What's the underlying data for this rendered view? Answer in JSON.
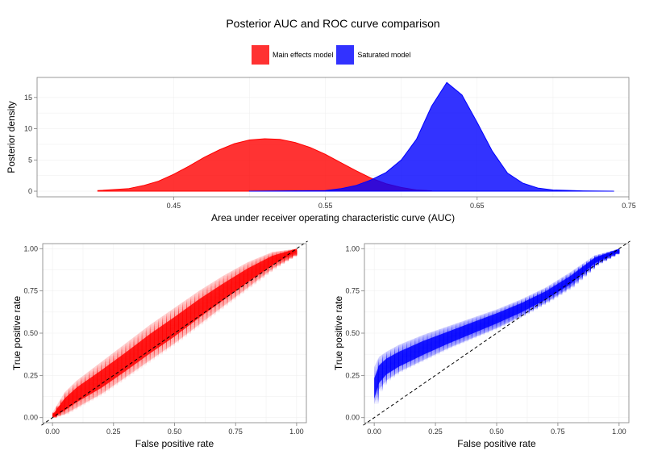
{
  "title": "Posterior AUC and ROC curve comparison",
  "legend": {
    "position": "top-center",
    "items": [
      {
        "label": "Main effects model",
        "color": "#ff0000"
      },
      {
        "label": "Saturated model",
        "color": "#0000ff"
      }
    ]
  },
  "chart_data": [
    {
      "type": "area",
      "title": "",
      "xlabel": "Area under receiver operating characteristic curve (AUC)",
      "ylabel": "Posterior density",
      "xlim": [
        0.36,
        0.75
      ],
      "ylim": [
        -0.9,
        18.2
      ],
      "xticks": [
        "0.45",
        "0.55",
        "0.65",
        "0.75"
      ],
      "xtick_values": [
        0.45,
        0.55,
        0.65,
        0.75
      ],
      "yticks": [
        "0",
        "5",
        "10",
        "15"
      ],
      "ytick_values": [
        0,
        5,
        10,
        15
      ],
      "grid": true,
      "series": [
        {
          "name": "Main effects model",
          "color": "#ff0000",
          "opacity": 0.8,
          "x": [
            0.4,
            0.42,
            0.43,
            0.44,
            0.45,
            0.46,
            0.47,
            0.48,
            0.49,
            0.5,
            0.51,
            0.52,
            0.53,
            0.54,
            0.55,
            0.56,
            0.57,
            0.58,
            0.59,
            0.6,
            0.61,
            0.62
          ],
          "y": [
            0.1,
            0.4,
            0.9,
            1.6,
            2.7,
            4.0,
            5.4,
            6.6,
            7.6,
            8.2,
            8.4,
            8.3,
            7.8,
            7.0,
            5.9,
            4.6,
            3.3,
            2.1,
            1.2,
            0.6,
            0.2,
            0.05
          ]
        },
        {
          "name": "Saturated model",
          "color": "#0000ff",
          "opacity": 0.8,
          "x": [
            0.5,
            0.55,
            0.56,
            0.57,
            0.58,
            0.59,
            0.6,
            0.61,
            0.62,
            0.63,
            0.64,
            0.65,
            0.66,
            0.67,
            0.68,
            0.69,
            0.7,
            0.72,
            0.74
          ],
          "y": [
            0.0,
            0.1,
            0.4,
            0.9,
            1.8,
            3.0,
            5.0,
            8.3,
            13.6,
            17.4,
            15.4,
            11.0,
            6.4,
            2.9,
            1.3,
            0.5,
            0.2,
            0.05,
            0.0
          ]
        }
      ]
    },
    {
      "type": "line",
      "title": "",
      "xlabel": "False positive rate",
      "ylabel": "True positive rate",
      "xlim": [
        -0.04,
        1.04
      ],
      "ylim": [
        -0.03,
        1.03
      ],
      "xticks": [
        "0.00",
        "0.25",
        "0.50",
        "0.75",
        "1.00"
      ],
      "yticks": [
        "0.00",
        "0.25",
        "0.50",
        "0.75",
        "1.00"
      ],
      "tick_values": [
        0,
        0.25,
        0.5,
        0.75,
        1.0
      ],
      "grid": true,
      "reference_line": {
        "from": [
          0,
          0
        ],
        "to": [
          1,
          1
        ],
        "style": "dashed",
        "color": "#000000"
      },
      "series": [
        {
          "name": "Main effects model",
          "color": "#ff0000",
          "band": {
            "x": [
              0.0,
              0.05,
              0.1,
              0.2,
              0.3,
              0.4,
              0.5,
              0.6,
              0.7,
              0.8,
              0.9,
              1.0
            ],
            "lower": [
              0.0,
              0.02,
              0.06,
              0.14,
              0.24,
              0.34,
              0.44,
              0.55,
              0.66,
              0.77,
              0.88,
              0.97
            ],
            "center": [
              0.0,
              0.07,
              0.13,
              0.22,
              0.32,
              0.43,
              0.53,
              0.64,
              0.74,
              0.84,
              0.93,
              1.0
            ],
            "upper": [
              0.03,
              0.15,
              0.22,
              0.33,
              0.44,
              0.55,
              0.65,
              0.75,
              0.84,
              0.92,
              0.98,
              1.0
            ]
          }
        }
      ]
    },
    {
      "type": "line",
      "title": "",
      "xlabel": "False positive rate",
      "ylabel": "True positive rate",
      "xlim": [
        -0.04,
        1.04
      ],
      "ylim": [
        -0.03,
        1.03
      ],
      "xticks": [
        "0.00",
        "0.25",
        "0.50",
        "0.75",
        "1.00"
      ],
      "yticks": [
        "0.00",
        "0.25",
        "0.50",
        "0.75",
        "1.00"
      ],
      "tick_values": [
        0,
        0.25,
        0.5,
        0.75,
        1.0
      ],
      "grid": true,
      "reference_line": {
        "from": [
          0,
          0
        ],
        "to": [
          1,
          1
        ],
        "style": "dashed",
        "color": "#000000"
      },
      "series": [
        {
          "name": "Saturated model",
          "color": "#0000ff",
          "band": {
            "x": [
              0.0,
              0.02,
              0.05,
              0.1,
              0.2,
              0.3,
              0.4,
              0.5,
              0.6,
              0.7,
              0.8,
              0.9,
              1.0
            ],
            "lower": [
              0.08,
              0.17,
              0.22,
              0.27,
              0.34,
              0.41,
              0.47,
              0.53,
              0.6,
              0.68,
              0.77,
              0.9,
              0.98
            ],
            "center": [
              0.15,
              0.25,
              0.3,
              0.34,
              0.41,
              0.47,
              0.53,
              0.59,
              0.65,
              0.72,
              0.81,
              0.93,
              1.0
            ],
            "upper": [
              0.3,
              0.36,
              0.39,
              0.43,
              0.49,
              0.54,
              0.59,
              0.64,
              0.7,
              0.77,
              0.86,
              0.96,
              1.0
            ]
          }
        }
      ]
    }
  ]
}
